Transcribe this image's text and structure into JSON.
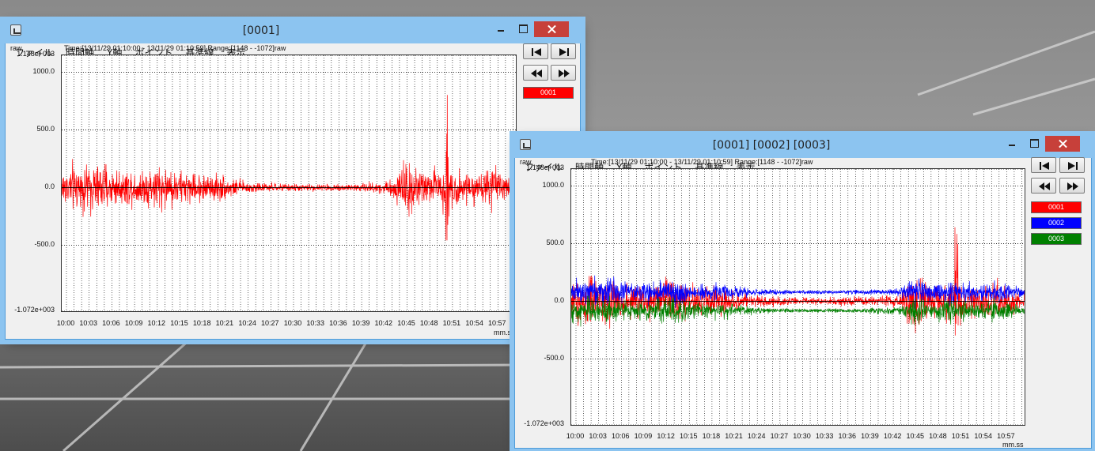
{
  "windows": [
    {
      "title": "[0001]",
      "menu": [
        "ファイル",
        "時間軸",
        "Y軸",
        "ポイント",
        "基準線",
        "表示"
      ],
      "y_unit": "raw",
      "info": "Time:[13/11/29 01:10:00 - 13/11/29 01:10:59] Range:[1148 - -1072]raw",
      "x_unit": "mm.ss",
      "y_labels": [
        "1.148e+003",
        "1000.0",
        "500.0",
        "0.0",
        "-500.0",
        "-1.072e+003"
      ],
      "x_labels": [
        "10:00",
        "10:03",
        "10:06",
        "10:09",
        "10:12",
        "10:15",
        "10:18",
        "10:21",
        "10:24",
        "10:27",
        "10:30",
        "10:33",
        "10:36",
        "10:39",
        "10:42",
        "10:45",
        "10:48",
        "10:51",
        "10:54",
        "10:57"
      ],
      "legend": [
        {
          "label": "0001",
          "color": "#ff0000"
        }
      ],
      "nav_icons": [
        "skip-start-icon",
        "skip-end-icon",
        "rewind-icon",
        "fast-forward-icon"
      ]
    },
    {
      "title": "[0001] [0002] [0003]",
      "menu": [
        "ファイル",
        "時間軸",
        "Y軸",
        "ポイント",
        "基準線",
        "表示"
      ],
      "y_unit": "raw",
      "info": "Time:[13/11/29 01:10:00 - 13/11/29 01:10:59] Range:[1148 - -1072]raw",
      "x_unit": "mm.ss",
      "y_labels": [
        "1.148e+003",
        "1000.0",
        "500.0",
        "0.0",
        "-500.0",
        "-1.072e+003"
      ],
      "x_labels": [
        "10:00",
        "10:03",
        "10:06",
        "10:09",
        "10:12",
        "10:15",
        "10:18",
        "10:21",
        "10:24",
        "10:27",
        "10:30",
        "10:33",
        "10:36",
        "10:39",
        "10:42",
        "10:45",
        "10:48",
        "10:51",
        "10:54",
        "10:57"
      ],
      "legend": [
        {
          "label": "0001",
          "color": "#ff0000"
        },
        {
          "label": "0002",
          "color": "#0000ff"
        },
        {
          "label": "0003",
          "color": "#008000"
        }
      ],
      "nav_icons": [
        "skip-start-icon",
        "skip-end-icon",
        "rewind-icon",
        "fast-forward-icon"
      ]
    }
  ],
  "chart_data": [
    {
      "type": "line",
      "ylabel": "raw",
      "xlabel": "mm.ss",
      "ylim": [
        -1072,
        1148
      ],
      "y_ticks": [
        1000,
        500,
        0,
        -500
      ],
      "x_tick_labels": [
        "10:00",
        "10:03",
        "10:06",
        "10:09",
        "10:12",
        "10:15",
        "10:18",
        "10:21",
        "10:24",
        "10:27",
        "10:30",
        "10:33",
        "10:36",
        "10:39",
        "10:42",
        "10:45",
        "10:48",
        "10:51",
        "10:54",
        "10:57"
      ],
      "grid": true,
      "series": [
        {
          "name": "0001",
          "color": "#ff0000",
          "offset": 0
        }
      ]
    },
    {
      "type": "line",
      "ylabel": "raw",
      "xlabel": "mm.ss",
      "ylim": [
        -1072,
        1148
      ],
      "y_ticks": [
        1000,
        500,
        0,
        -500
      ],
      "x_tick_labels": [
        "10:00",
        "10:03",
        "10:06",
        "10:09",
        "10:12",
        "10:15",
        "10:18",
        "10:21",
        "10:24",
        "10:27",
        "10:30",
        "10:33",
        "10:36",
        "10:39",
        "10:42",
        "10:45",
        "10:48",
        "10:51",
        "10:54",
        "10:57"
      ],
      "grid": true,
      "series": [
        {
          "name": "0001",
          "color": "#ff0000",
          "offset": 0
        },
        {
          "name": "0002",
          "color": "#0000ff",
          "offset": 80
        },
        {
          "name": "0003",
          "color": "#008000",
          "offset": -80
        }
      ]
    }
  ]
}
